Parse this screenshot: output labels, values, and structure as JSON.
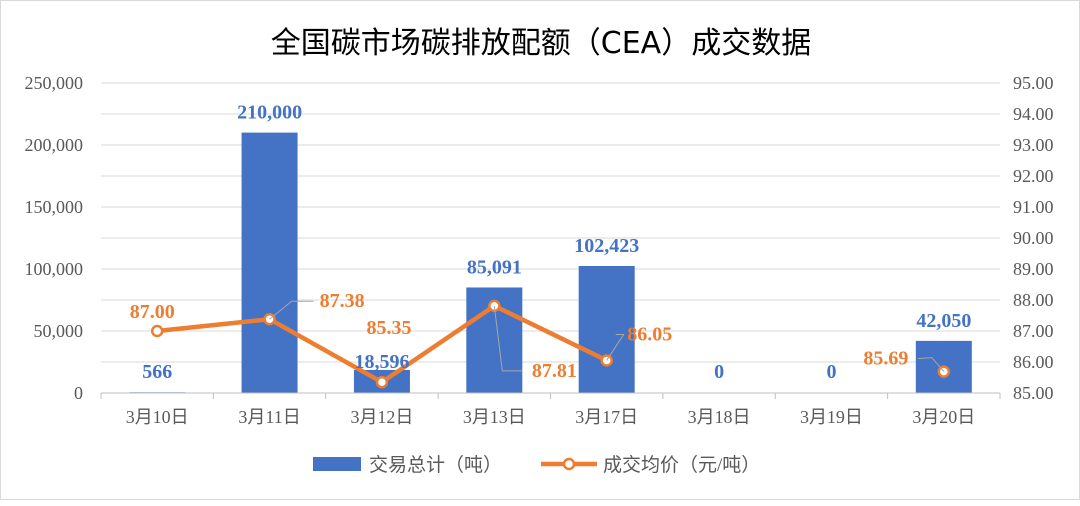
{
  "chart_data": {
    "type": "bar+line",
    "title": "全国碳市场碳排放配额（CEA）成交数据",
    "categories": [
      "3月10日",
      "3月11日",
      "3月12日",
      "3月13日",
      "3月17日",
      "3月18日",
      "3月19日",
      "3月20日"
    ],
    "y_left": {
      "ylim": [
        0,
        250000
      ],
      "ticks": [
        "0",
        "50,000",
        "100,000",
        "150,000",
        "200,000",
        "250,000"
      ]
    },
    "y_right": {
      "ylim": [
        85.0,
        95.0
      ],
      "ticks": [
        "85.00",
        "86.00",
        "87.00",
        "88.00",
        "89.00",
        "90.00",
        "91.00",
        "92.00",
        "93.00",
        "94.00",
        "95.00"
      ]
    },
    "series": [
      {
        "name": "交易总计（吨）",
        "kind": "bar",
        "axis": "left",
        "color": "#4472C4",
        "values": [
          566,
          210000,
          18596,
          85091,
          102423,
          0,
          0,
          42050
        ],
        "labels": [
          "566",
          "210,000",
          "18,596",
          "85,091",
          "102,423",
          "0",
          "0",
          "42,050"
        ]
      },
      {
        "name": "成交均价（元/吨）",
        "kind": "line",
        "axis": "right",
        "color": "#ED7D31",
        "values": [
          87.0,
          87.38,
          85.35,
          87.81,
          86.05,
          null,
          null,
          85.69
        ],
        "labels": [
          "87.00",
          "87.38",
          "85.35",
          "87.81",
          "86.05",
          null,
          null,
          "85.69"
        ]
      }
    ],
    "legend": "bottom",
    "grid": true
  }
}
